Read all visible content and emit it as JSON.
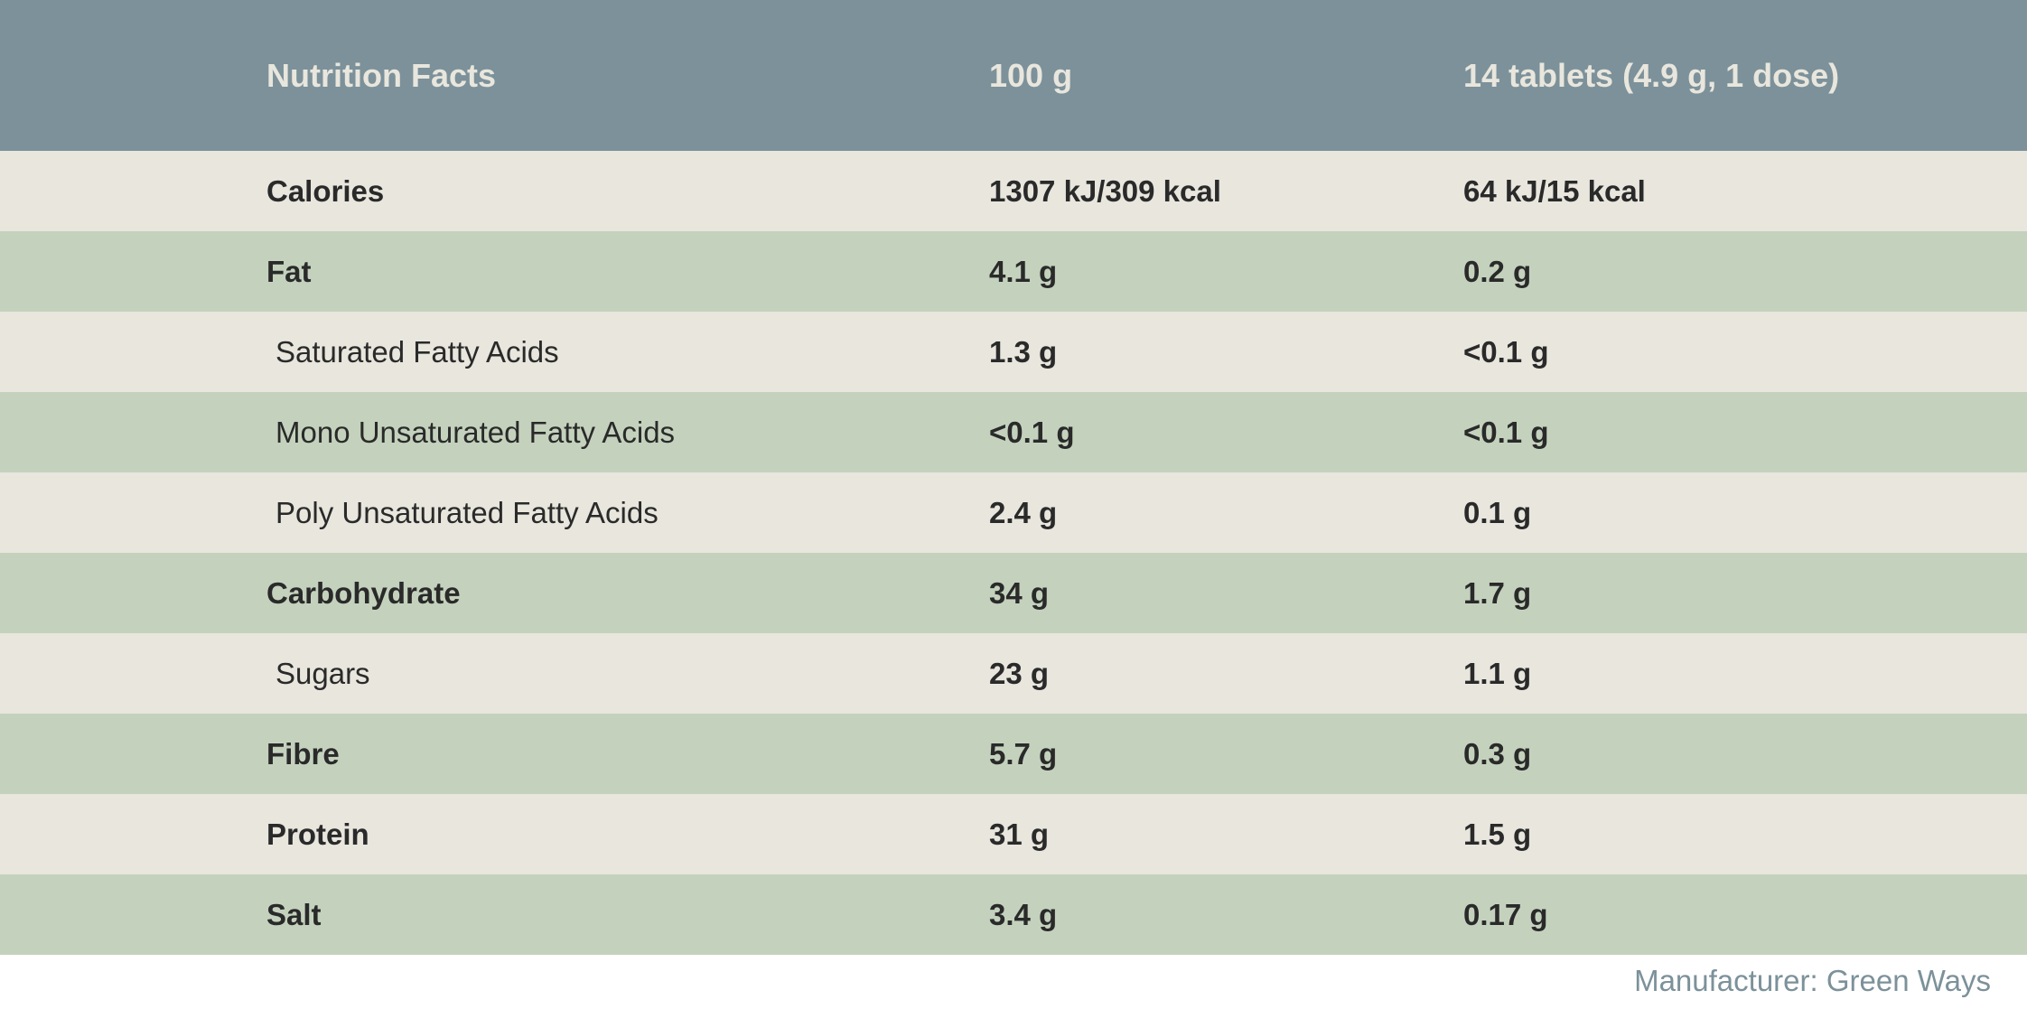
{
  "header": {
    "title": "Nutrition Facts",
    "col1": "100 g",
    "col2": "14 tablets (4.9 g, 1 dose)"
  },
  "rows": [
    {
      "label": "Calories",
      "v1": "1307 kJ/309 kcal",
      "v2": "64 kJ/15 kcal",
      "bold": true,
      "bg": "plain"
    },
    {
      "label": "Fat",
      "v1": "4.1 g",
      "v2": "0.2 g",
      "bold": true,
      "bg": "alt"
    },
    {
      "label": "Saturated Fatty Acids",
      "v1": "1.3 g",
      "v2": "<0.1 g",
      "bold": false,
      "bg": "plain"
    },
    {
      "label": "Mono Unsaturated Fatty Acids",
      "v1": "<0.1 g",
      "v2": "<0.1 g",
      "bold": false,
      "bg": "alt"
    },
    {
      "label": "Poly Unsaturated  Fatty Acids",
      "v1": "2.4 g",
      "v2": "0.1 g",
      "bold": false,
      "bg": "plain"
    },
    {
      "label": "Carbohydrate",
      "v1": "34 g",
      "v2": "1.7 g",
      "bold": true,
      "bg": "alt"
    },
    {
      "label": "Sugars",
      "v1": "23 g",
      "v2": "1.1 g",
      "bold": false,
      "bg": "plain"
    },
    {
      "label": "Fibre",
      "v1": "5.7 g",
      "v2": "0.3 g",
      "bold": true,
      "bg": "alt"
    },
    {
      "label": "Protein",
      "v1": "31 g",
      "v2": "1.5 g",
      "bold": true,
      "bg": "plain"
    },
    {
      "label": "Salt",
      "v1": "3.4 g",
      "v2": "0.17 g",
      "bold": true,
      "bg": "alt"
    }
  ],
  "footer": "Manufacturer: Green Ways",
  "colors": {
    "header_bg": "#7c919a",
    "header_text": "#e8e6dd",
    "row_alt_bg": "#c4d2bd",
    "row_plain_bg": "#e8e6dd",
    "text": "#2a2a2a",
    "footer_text": "#7c919a"
  }
}
